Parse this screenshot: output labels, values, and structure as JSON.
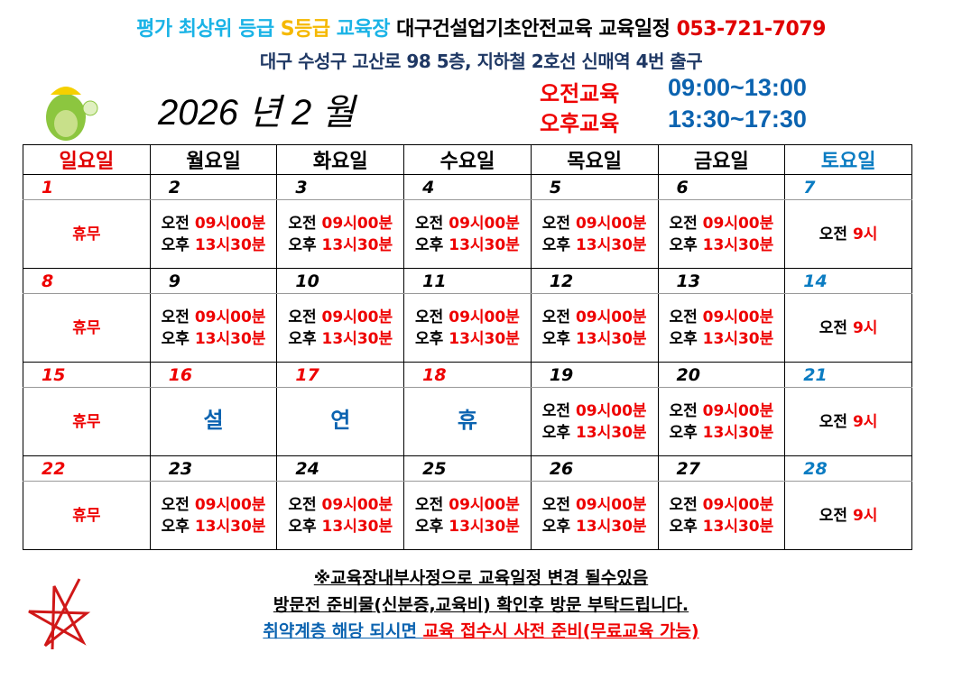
{
  "header": {
    "line1": [
      {
        "t": "평가 최상위 등급 ",
        "c": "#1ab3e6"
      },
      {
        "t": "S등급",
        "c": "#f5b800"
      },
      {
        "t": " 교육장 ",
        "c": "#1ab3e6"
      },
      {
        "t": "대구건설업기초안전교육 교육일정 ",
        "c": "#000000"
      },
      {
        "t": "053-721-7079",
        "c": "#e00000"
      }
    ],
    "address": "대구 수성구 고산로 98  5층, 지하철 2호선 신매역 4번 출구",
    "title": "2026 년 2 월",
    "am_label": "오전교육",
    "am_time": "09:00~13:00",
    "pm_label": "오후교육",
    "pm_time": "13:30~17:30"
  },
  "weekdays": [
    {
      "t": "일요일",
      "c": "#e00000"
    },
    {
      "t": "월요일",
      "c": "#000000"
    },
    {
      "t": "화요일",
      "c": "#000000"
    },
    {
      "t": "수요일",
      "c": "#000000"
    },
    {
      "t": "목요일",
      "c": "#000000"
    },
    {
      "t": "금요일",
      "c": "#000000"
    },
    {
      "t": "토요일",
      "c": "#0b7cc2"
    }
  ],
  "labels": {
    "am": "오전 ",
    "am_time": "09시00분",
    "pm": "오후 ",
    "pm_time": "13시30분",
    "sat_am": "오전 ",
    "sat_time": "9시",
    "closed": "휴무"
  },
  "weeks": [
    {
      "dates": [
        "1",
        "2",
        "3",
        "4",
        "5",
        "6",
        "7"
      ],
      "holiday": []
    },
    {
      "dates": [
        "8",
        "9",
        "10",
        "11",
        "12",
        "13",
        "14"
      ],
      "holiday": []
    },
    {
      "dates": [
        "15",
        "16",
        "17",
        "18",
        "19",
        "20",
        "21"
      ],
      "holiday": [
        "설",
        "연",
        "휴"
      ]
    },
    {
      "dates": [
        "22",
        "23",
        "24",
        "25",
        "26",
        "27",
        "28"
      ],
      "holiday": []
    }
  ],
  "footer": {
    "notice": "※교육장내부사정으로 교육일정 변경 될수있음",
    "prepare": "방문전 준비물(신분증,교육비) 확인후 방문 부탁드립니다.",
    "vulnerable_blue": "취약계층 해당 되시면 ",
    "vulnerable_red": "교육 접수시 사전 준비(무료교육 가능)"
  }
}
